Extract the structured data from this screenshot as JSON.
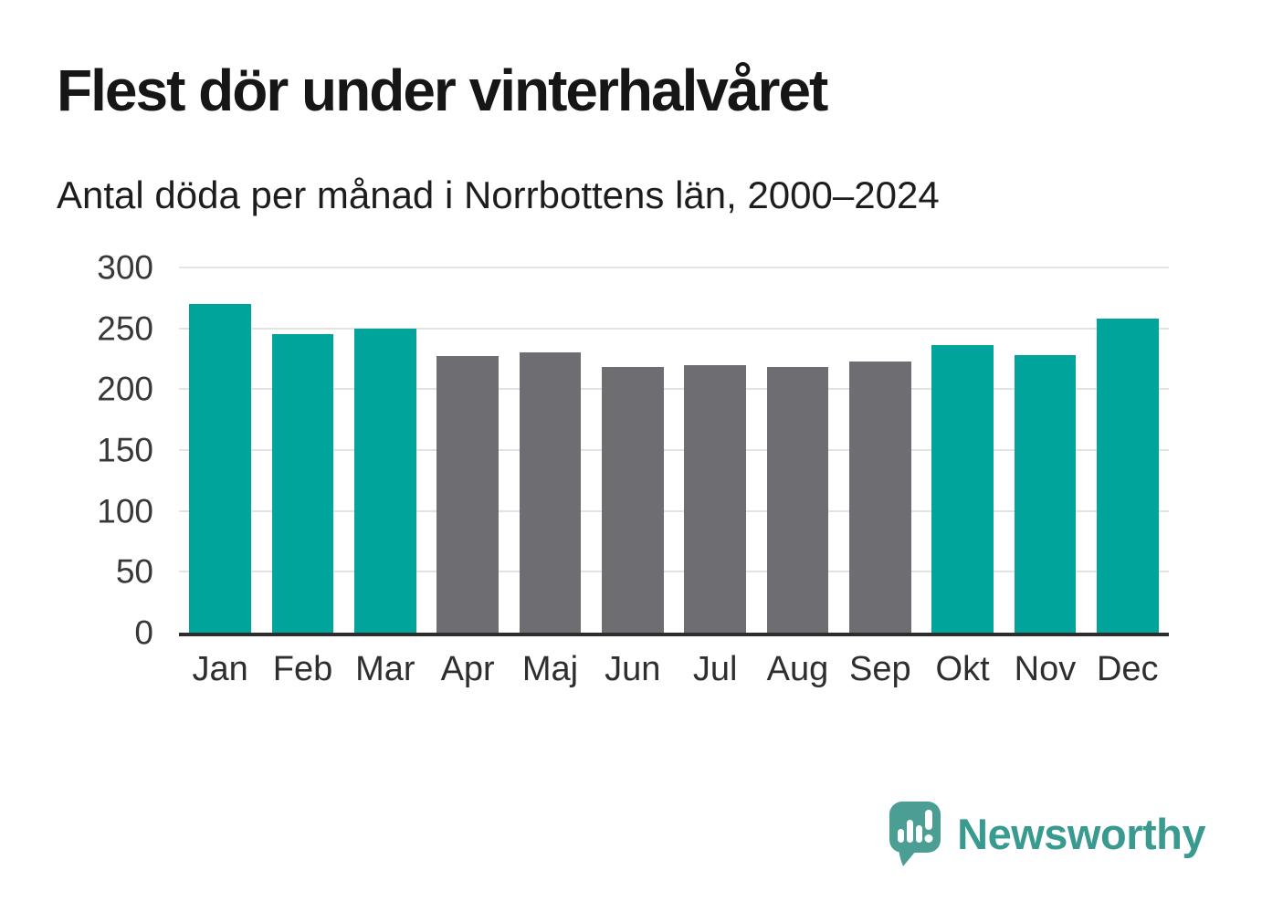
{
  "header": {
    "title": "Flest dör under vinterhalvåret",
    "subtitle": "Antal döda per månad i Norrbottens län, 2000–2024"
  },
  "chart_data": {
    "type": "bar",
    "title": "Flest dör under vinterhalvåret",
    "subtitle": "Antal döda per månad i Norrbottens län, 2000–2024",
    "categories": [
      "Jan",
      "Feb",
      "Mar",
      "Apr",
      "Maj",
      "Jun",
      "Jul",
      "Aug",
      "Sep",
      "Okt",
      "Nov",
      "Dec"
    ],
    "values": [
      270,
      245,
      250,
      227,
      230,
      218,
      220,
      218,
      223,
      236,
      228,
      258
    ],
    "highlighted": [
      true,
      true,
      true,
      false,
      false,
      false,
      false,
      false,
      false,
      true,
      true,
      true
    ],
    "highlight_color": "#00a49b",
    "base_color": "#6d6d72",
    "xlabel": "",
    "ylabel": "",
    "ylim": [
      0,
      300
    ],
    "yticks": [
      0,
      50,
      100,
      150,
      200,
      250,
      300
    ],
    "grid": true,
    "legend_position": "none",
    "gridline_color": "#e3e3e3",
    "axis_color": "#2d2d2d"
  },
  "footer": {
    "brand": "Newsworthy",
    "brand_color": "#399a8f",
    "logo_icon": "newsworthy-speech-bubble-bar-chart-icon",
    "logo_icon_color": "#4a9e94"
  }
}
